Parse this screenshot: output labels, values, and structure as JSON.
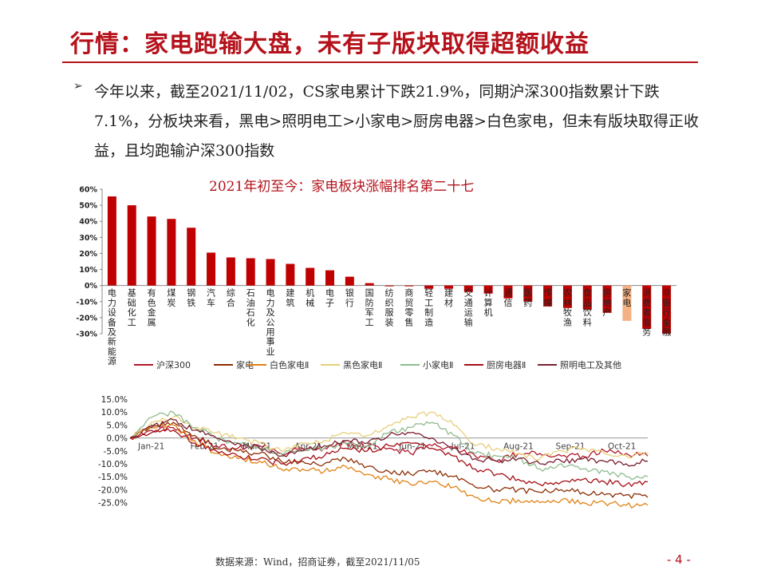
{
  "page": {
    "title": "行情：家电跑输大盘，未有子版块取得超额收益",
    "bullet_icon": "➢",
    "paragraph": "今年以来，截至2021/11/02，CS家电累计下跌21.9%，同期沪深300指数累计下跌7.1%，分板块来看，黑电>照明电工>小家电>厨房电器>白色家电，但未有版块取得正收益，且均跑输沪深300指数",
    "source": "数据来源：Wind，招商证券，截至2021/11/05",
    "page_number": "- 4 -"
  },
  "chart_data": [
    {
      "type": "bar",
      "title": "2021年初至今：家电板块涨幅排名第二十七",
      "categories": [
        "电力设备及新能源",
        "基础化工",
        "有色金属",
        "煤炭",
        "钢铁",
        "汽车",
        "综合",
        "石油石化",
        "电力及公用事业",
        "建筑",
        "机械",
        "电子",
        "银行",
        "国防军工",
        "纺织服装",
        "商贸零售",
        "轻工制造",
        "建材",
        "交通运输",
        "计算机",
        "通信",
        "医药",
        "传媒",
        "农林牧渔",
        "食品饮料",
        "房地产",
        "家电",
        "消费者服务",
        "非银行金融"
      ],
      "values": [
        55.5,
        50,
        43,
        41.5,
        36,
        20.5,
        17.5,
        17,
        16.5,
        13.5,
        11,
        9.5,
        5.5,
        1.5,
        -0.5,
        -0.5,
        -2,
        -2,
        -4,
        -5,
        -8,
        -10,
        -13,
        -14,
        -15,
        -17,
        -22,
        -27,
        -30
      ],
      "highlight_category": "家电",
      "ylim": [
        -30,
        60
      ],
      "yticks": [
        "60%",
        "50%",
        "40%",
        "30%",
        "20%",
        "10%",
        "0%",
        "-10%",
        "-20%",
        "-30%"
      ],
      "colors": {
        "bar": "#c00000",
        "highlight": "#f4b183"
      }
    },
    {
      "type": "line",
      "legend": [
        "沪深300",
        "家电",
        "白色家电Ⅱ",
        "黑色家电Ⅱ",
        "小家电Ⅱ",
        "厨房电器Ⅱ",
        "照明电工及其他"
      ],
      "x_tick_labels": [
        "Jan-21",
        "Feb-21",
        "Mar-21",
        "Apr-21",
        "May-21",
        "Jun-21",
        "Jul-21",
        "Aug-21",
        "Sep-21",
        "Oct-21"
      ],
      "yticks": [
        "15.0%",
        "10.0%",
        "5.0%",
        "0.0%",
        "-5.0%",
        "-10.0%",
        "-15.0%",
        "-20.0%",
        "-25.0%"
      ],
      "ylim": [
        -27,
        15
      ],
      "series": [
        {
          "name": "沪深300",
          "color": "#b2182b",
          "values": [
            0,
            3,
            4,
            0,
            -3,
            -4,
            -3,
            -6,
            -4,
            -4,
            -2,
            -3,
            -4,
            -6,
            -3,
            -4,
            -7,
            -9,
            -6,
            -6,
            -7,
            -7,
            -5,
            -6,
            -7
          ]
        },
        {
          "name": "家电",
          "color": "#8c2d04",
          "values": [
            0,
            5,
            6,
            1,
            -4,
            -5,
            -6,
            -9,
            -9,
            -10,
            -8,
            -11,
            -13,
            -14,
            -13,
            -15,
            -19,
            -20,
            -20,
            -21,
            -20,
            -21,
            -22,
            -22,
            -23
          ]
        },
        {
          "name": "白色家电Ⅱ",
          "color": "#e08214",
          "values": [
            0,
            4,
            5,
            -1,
            -6,
            -8,
            -9,
            -12,
            -12,
            -13,
            -11,
            -14,
            -16,
            -18,
            -17,
            -19,
            -23,
            -25,
            -24,
            -25,
            -24,
            -25,
            -25,
            -26,
            -26
          ]
        },
        {
          "name": "黑色家电Ⅱ",
          "color": "#e8cf7a",
          "values": [
            0,
            6,
            8,
            4,
            2,
            0,
            -2,
            -5,
            -2,
            -1,
            2,
            1,
            5,
            8,
            10,
            5,
            -3,
            -4,
            -6,
            -8,
            -5,
            -4,
            -6,
            -7,
            -6
          ]
        },
        {
          "name": "小家电Ⅱ",
          "color": "#8fbc8f",
          "values": [
            0,
            8,
            10,
            4,
            0,
            -2,
            -4,
            -6,
            -5,
            -4,
            -2,
            -3,
            2,
            4,
            6,
            1,
            -6,
            -7,
            -8,
            -12,
            -10,
            -12,
            -13,
            -15,
            -15
          ]
        },
        {
          "name": "厨房电器Ⅱ",
          "color": "#a50f15",
          "values": [
            0,
            2,
            3,
            -2,
            -5,
            -7,
            -8,
            -10,
            -8,
            -7,
            -4,
            -5,
            -3,
            -2,
            -4,
            -7,
            -12,
            -14,
            -16,
            -18,
            -17,
            -16,
            -17,
            -18,
            -17
          ]
        },
        {
          "name": "照明电工及其他",
          "color": "#7b1f2f",
          "values": [
            0,
            4,
            7,
            3,
            0,
            -2,
            -4,
            -7,
            -5,
            -3,
            -1,
            -2,
            1,
            2,
            0,
            -4,
            -8,
            -9,
            -8,
            -10,
            -9,
            -8,
            -9,
            -10,
            -9
          ]
        }
      ]
    }
  ]
}
